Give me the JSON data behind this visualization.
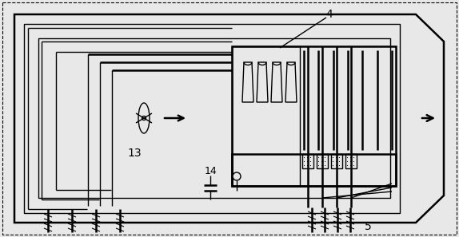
{
  "bg_color": "#e8e8e8",
  "line_color": "#000000",
  "lw": 1.0,
  "lw_thick": 1.8,
  "fig_width": 5.74,
  "fig_height": 2.97,
  "label_4": "4",
  "label_13": "13",
  "label_14": "14",
  "label_5": "5"
}
